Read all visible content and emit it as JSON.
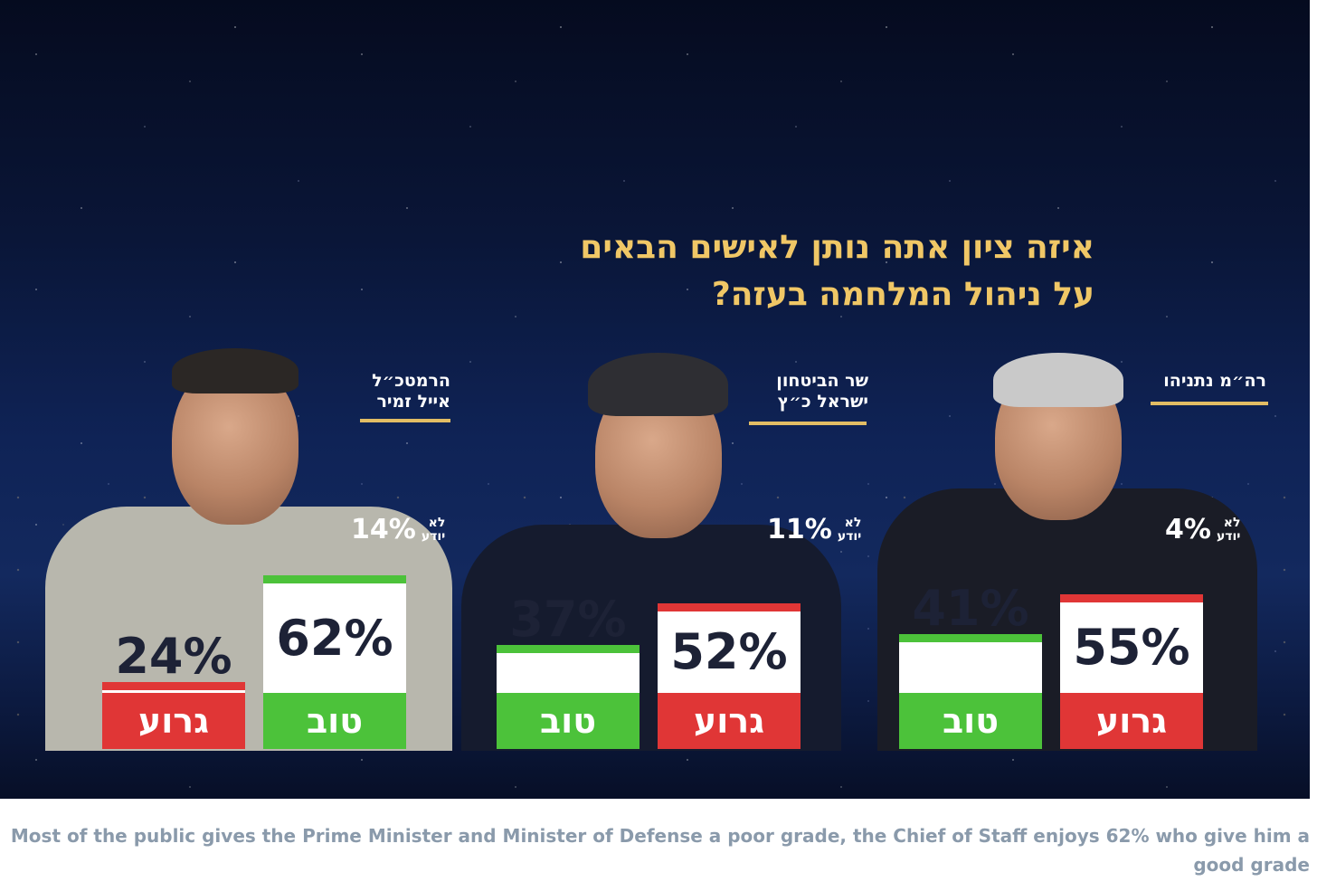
{
  "title_lines": [
    "איזה ציון אתה נותן לאישים הבאים",
    "על ניהול המלחמה בעזה?"
  ],
  "caption": "Most of the public gives the Prime Minister and Minister of Defense a poor grade, the Chief of Staff enjoys 62% who give him a good grade",
  "colors": {
    "good": "#4cc23a",
    "bad": "#e03636",
    "gold": "#f0c766",
    "background": "#0f2356"
  },
  "chart_data": {
    "type": "bar",
    "categories": [
      "רה״מ נתניהו",
      "שר הביטחון ישראל כ״ץ",
      "הרמטכ״ל אייל זמיר"
    ],
    "series": [
      {
        "name": "טוב",
        "values": [
          41,
          37,
          62
        ]
      },
      {
        "name": "גרוע",
        "values": [
          55,
          52,
          24
        ]
      },
      {
        "name": "לא יודע",
        "values": [
          4,
          11,
          14
        ]
      }
    ],
    "unit": "%",
    "ylim": [
      0,
      100
    ]
  },
  "people": [
    {
      "name_lines": [
        "רה״מ נתניהו"
      ],
      "dont_know_label": [
        "לא",
        "יודע"
      ],
      "dont_know": "4%",
      "bars": [
        {
          "kind": "good",
          "label": "טוב",
          "value": 41,
          "value_text": "41%"
        },
        {
          "kind": "bad",
          "label": "גרוע",
          "value": 55,
          "value_text": "55%"
        }
      ]
    },
    {
      "name_lines": [
        "שר הביטחון",
        "ישראל כ״ץ"
      ],
      "dont_know_label": [
        "לא",
        "יודע"
      ],
      "dont_know": "11%",
      "bars": [
        {
          "kind": "good",
          "label": "טוב",
          "value": 37,
          "value_text": "37%"
        },
        {
          "kind": "bad",
          "label": "גרוע",
          "value": 52,
          "value_text": "52%"
        }
      ]
    },
    {
      "name_lines": [
        "הרמטכ״ל",
        "אייל זמיר"
      ],
      "dont_know_label": [
        "לא",
        "יודע"
      ],
      "dont_know": "14%",
      "bars": [
        {
          "kind": "bad",
          "label": "גרוע",
          "value": 24,
          "value_text": "24%"
        },
        {
          "kind": "good",
          "label": "טוב",
          "value": 62,
          "value_text": "62%"
        }
      ]
    }
  ]
}
